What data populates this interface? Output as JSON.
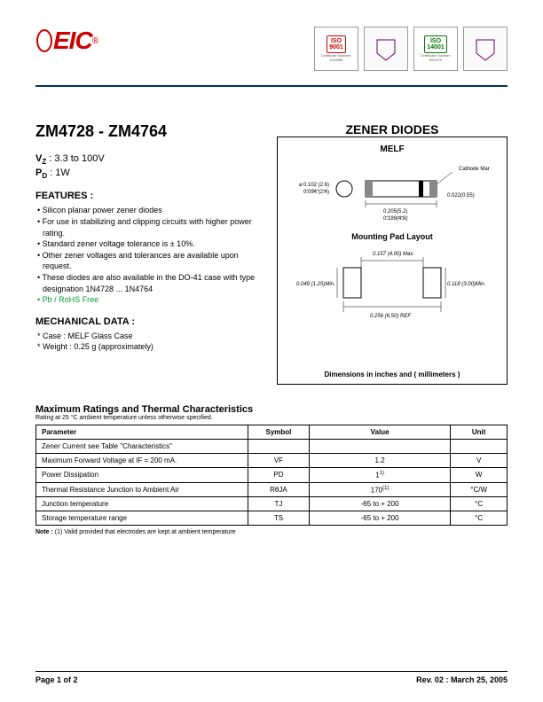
{
  "header": {
    "logo_text": "EIC",
    "certs": [
      {
        "label": "SGS",
        "iso": "ISO\n9001",
        "cert_no": "Certificate Number: CH0856"
      },
      {
        "label": "UKAS",
        "iso": "",
        "cert_no": ""
      },
      {
        "label": "SGS",
        "iso": "ISO\n14001",
        "cert_no": "Certificate Number: EN1270",
        "green": true
      },
      {
        "label": "UKAS",
        "iso": "",
        "cert_no": ""
      }
    ]
  },
  "title": {
    "part_range": "ZM4728 - ZM4764",
    "product": "ZENER DIODES"
  },
  "specs": {
    "vz_label": "V",
    "vz_sub": "Z",
    "vz_value": " : 3.3 to 100V",
    "pd_label": "P",
    "pd_sub": "D",
    "pd_value": " : 1W"
  },
  "features": {
    "heading": "FEATURES :",
    "items": [
      "Silicon planar power zener diodes",
      "For use in stabilizing and clipping circuits with higher power rating.",
      "Standard zener voltage tolerance is ± 10%.",
      "Other zener voltages and tolerances are available upon request.",
      "These diodes are also available in the DO-41 case with type designation 1N4728 ... 1N4764"
    ],
    "rohs": "Pb / RoHS Free"
  },
  "mechanical": {
    "heading": "MECHANICAL  DATA :",
    "items": [
      "Case : MELF Glass Case",
      "Weight : 0.25 g (approximately)"
    ]
  },
  "diagram": {
    "melf_title": "MELF",
    "cathode": "Cathode Mark",
    "dims": {
      "d1": "0.102 (2.6)",
      "d2": "0.094 (2.4)",
      "d3": "0.022(0.55)",
      "d4": "0.205(5.2)",
      "d5": "0.189(4.8)"
    },
    "pad_title": "Mounting Pad Layout",
    "pad_dims": {
      "p1": "0.049 (1.25)Min.",
      "p2": "0.157 (4.00) Max.",
      "p3": "0.118 (3.00)Min.",
      "p4": "0.256 (6.50) REF"
    },
    "note": "Dimensions in inches and ( millimeters )"
  },
  "ratings": {
    "title": "Maximum Ratings and Thermal Characteristics",
    "subtitle": "Rating at  25 °C ambient temperature unless otherwise specified.",
    "columns": [
      "Parameter",
      "Symbol",
      "Value",
      "Unit"
    ],
    "rows": [
      {
        "param": "Zener Current see Table \"Characteristics\"",
        "symbol": "",
        "value": "",
        "unit": ""
      },
      {
        "param": "Maximum Forward Voltage at IF = 200 mA.",
        "symbol": "VF",
        "value": "1.2",
        "unit": "V"
      },
      {
        "param": "Power Dissipation",
        "symbol": "PD",
        "value": "1",
        "sup": "1)",
        "unit": "W"
      },
      {
        "param": "Thermal Resistance Junction to Ambient Air",
        "symbol": "RθJA",
        "value": "170",
        "sup": "(1)",
        "unit": "°C/W"
      },
      {
        "param": "Junction temperature",
        "symbol": "TJ",
        "value": "-65 to + 200",
        "unit": "°C"
      },
      {
        "param": "Storage temperature range",
        "symbol": "TS",
        "value": "-65 to + 200",
        "unit": "°C"
      }
    ],
    "note": "Note : (1) Valid provided that electrodes are kept at ambient temperature"
  },
  "footer": {
    "page": "Page 1 of 2",
    "rev": "Rev. 02 : March 25, 2005"
  },
  "colors": {
    "brand": "#cc0000",
    "line": "#003366",
    "rohs": "#009933"
  }
}
